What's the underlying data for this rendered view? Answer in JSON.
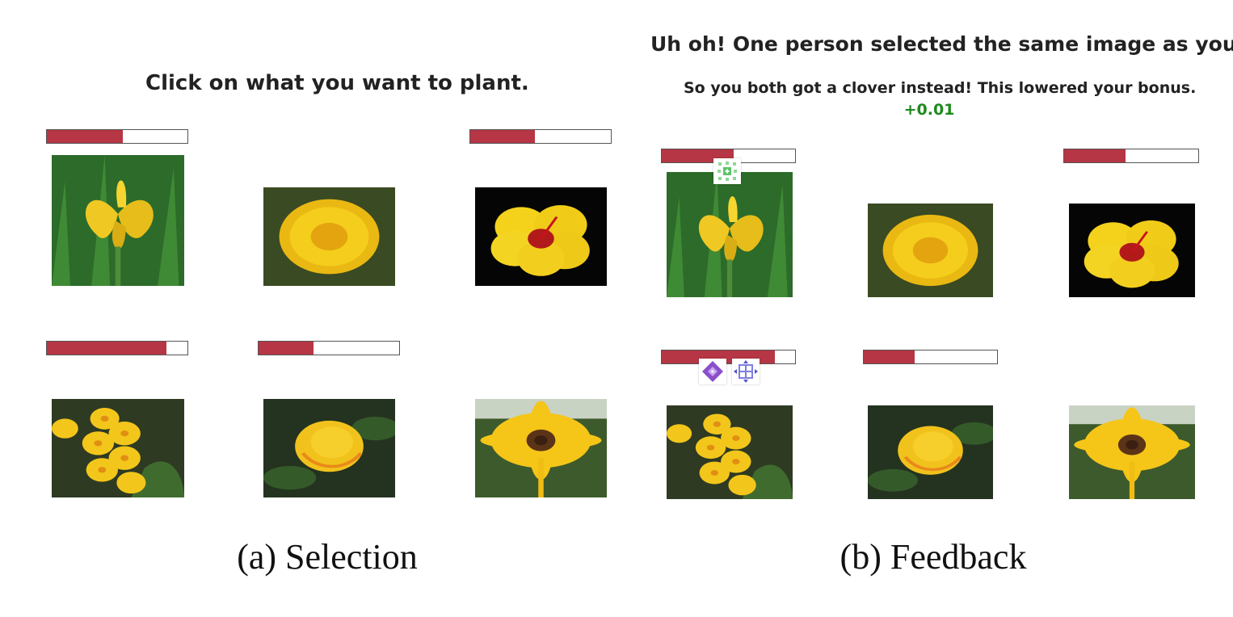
{
  "selection": {
    "prompt": "Click on what you want to plant.",
    "caption": "(a) Selection",
    "progress": [
      0.54,
      null,
      0.46,
      0.85,
      0.39,
      null
    ]
  },
  "feedback": {
    "title": "Uh oh! One person selected the same image as you.",
    "subtitle": "So you both got a clover instead! This lowered your bonus.",
    "bonus": "+0.01",
    "caption": "(b) Feedback",
    "progress": [
      0.54,
      null,
      0.46,
      0.85,
      0.38,
      null
    ]
  },
  "flowers": [
    "iris",
    "dandelion",
    "hibiscus",
    "primrose",
    "rose",
    "gerbera"
  ],
  "colors": {
    "bar_fill": "#b63645",
    "bonus": "#1d8a1d",
    "petal": "#f5d01e"
  },
  "badges": [
    "green-clover-icon",
    "purple-diamond-icon",
    "blue-lattice-icon"
  ]
}
